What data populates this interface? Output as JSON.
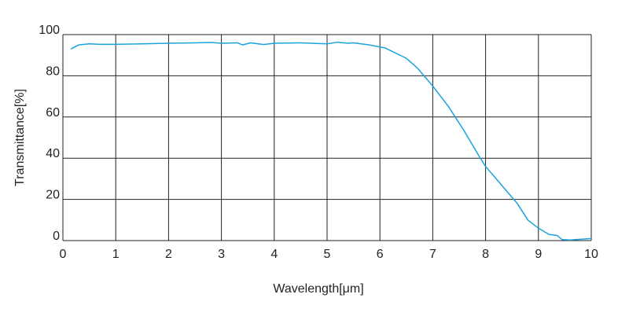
{
  "chart_data": {
    "type": "line",
    "x_label": "Wavelength[μm]",
    "y_label": "Transmittance[%]",
    "xlim": [
      0,
      10
    ],
    "ylim": [
      0,
      100
    ],
    "xticks": [
      0,
      1,
      2,
      3,
      4,
      5,
      6,
      7,
      8,
      9,
      10
    ],
    "yticks": [
      0,
      20,
      40,
      60,
      80,
      100
    ],
    "grid": true,
    "series": [
      {
        "color": "#1aa3dc",
        "x": [
          0.15,
          0.3,
          0.5,
          0.7,
          1,
          1.5,
          2,
          2.5,
          2.8,
          3,
          3.3,
          3.4,
          3.55,
          3.8,
          4,
          4.5,
          5,
          5.2,
          5.4,
          5.5,
          5.8,
          6,
          6.1,
          6.3,
          6.5,
          6.7,
          7,
          7.3,
          7.6,
          7.9,
          8,
          8.3,
          8.6,
          8.8,
          9,
          9.2,
          9.35,
          9.45,
          9.6,
          10
        ],
        "values": [
          93,
          95,
          95.5,
          95.3,
          95.3,
          95.5,
          95.8,
          96,
          96.2,
          95.8,
          96,
          95,
          96,
          95.2,
          95.8,
          96,
          95.5,
          96.3,
          95.8,
          96,
          95,
          94,
          93.5,
          91,
          88.5,
          84,
          75,
          65,
          53,
          40,
          36,
          27,
          18,
          10,
          6,
          3,
          2.5,
          0.5,
          0.3,
          1
        ]
      }
    ]
  }
}
